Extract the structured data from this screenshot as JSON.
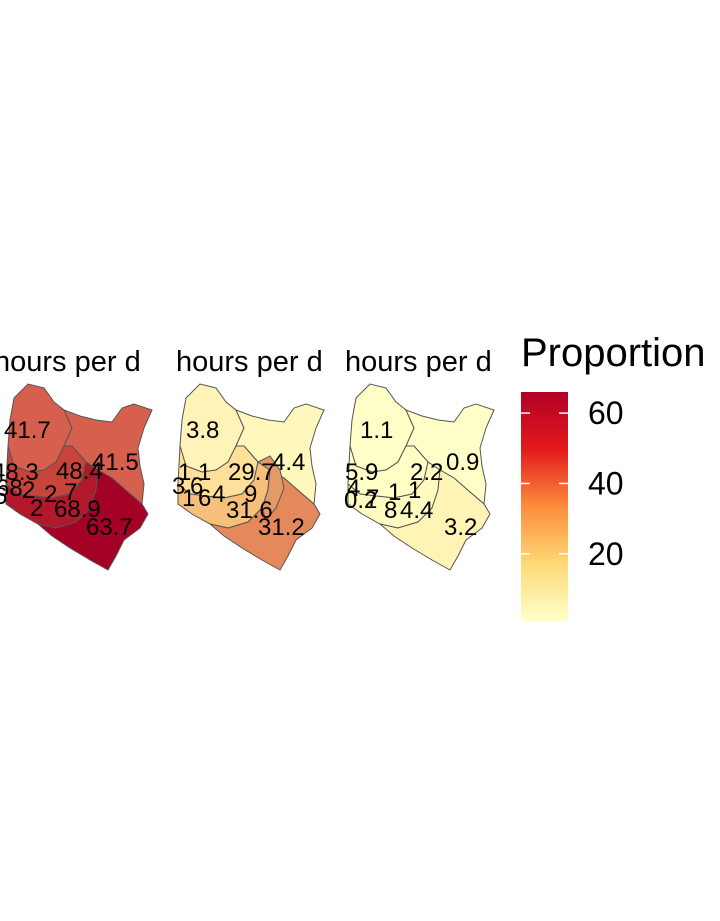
{
  "legend": {
    "title": "Proportion",
    "ticks": [
      20,
      40,
      60
    ],
    "range": [
      0.9,
      66
    ],
    "colors": [
      "#ffffcc",
      "#fed976",
      "#fd8d3c",
      "#e31a1c",
      "#b10026"
    ]
  },
  "chart_data": [
    {
      "type": "choropleth",
      "title": "hours per d",
      "labels": [
        "41.7",
        "41.5",
        "48.3",
        "48.4",
        "68.9",
        "63.7",
        "6",
        "2",
        "2",
        "2",
        "7",
        "68"
      ]
    },
    {
      "type": "choropleth",
      "title": "hours per d",
      "labels": [
        "3.8",
        "4.4",
        "1.1",
        "29.7",
        "31.2",
        "31.6",
        "3",
        "1",
        "6",
        "4",
        "9",
        "6"
      ]
    },
    {
      "type": "choropleth",
      "title": "hours per d",
      "labels": [
        "1.1",
        "0.9",
        "2.2",
        "3.2",
        "4.4",
        "5.9",
        "4",
        "0.2",
        "1",
        "8",
        "7",
        "1"
      ]
    }
  ]
}
